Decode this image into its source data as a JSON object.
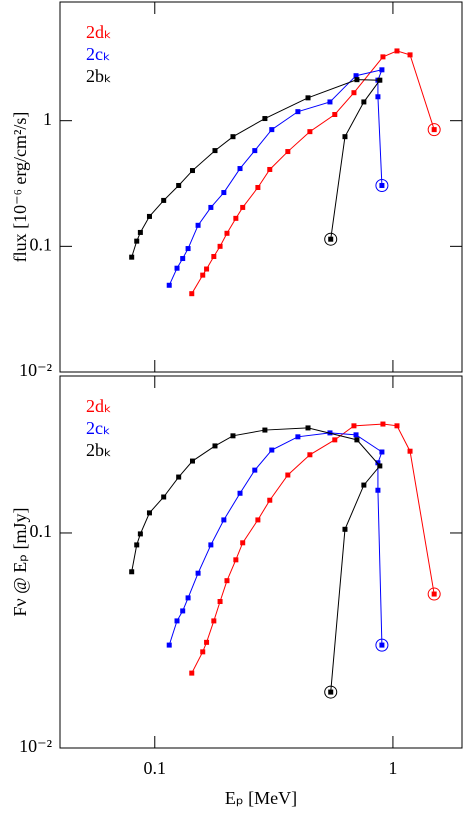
{
  "chart_data": [
    {
      "type": "line",
      "y_label": "flux [10⁻⁶ erg/cm²/s]",
      "xscale": "log",
      "yscale": "log",
      "xlim": [
        0.04,
        1.95
      ],
      "ylim": [
        0.01,
        8.8
      ],
      "xticks": [
        0.1,
        1
      ],
      "show_xtick_labels": false,
      "yticks": [
        {
          "value": 0.01,
          "label": "10⁻²"
        },
        0.1,
        1
      ],
      "legend": "upper left",
      "circle_last": true,
      "series": [
        {
          "name": "2dₖ",
          "color": "#ff0000",
          "x": [
            0.143,
            0.159,
            0.165,
            0.177,
            0.188,
            0.201,
            0.219,
            0.234,
            0.271,
            0.304,
            0.362,
            0.448,
            0.57,
            0.686,
            0.908,
            1.04,
            1.18,
            1.49
          ],
          "values": [
            0.042,
            0.059,
            0.066,
            0.083,
            0.1,
            0.127,
            0.167,
            0.204,
            0.294,
            0.409,
            0.568,
            0.818,
            1.12,
            1.67,
            3.22,
            3.59,
            3.34,
            0.849
          ]
        },
        {
          "name": "2cₖ",
          "color": "#0000ff",
          "x": [
            0.115,
            0.124,
            0.131,
            0.138,
            0.152,
            0.172,
            0.195,
            0.228,
            0.263,
            0.31,
            0.399,
            0.544,
            0.7,
            0.899,
            0.865,
            0.865,
            0.899
          ],
          "values": [
            0.049,
            0.067,
            0.08,
            0.096,
            0.147,
            0.204,
            0.268,
            0.416,
            0.578,
            0.849,
            1.18,
            1.41,
            2.28,
            2.54,
            2.1,
            1.55,
            0.305
          ]
        },
        {
          "name": "2bₖ",
          "color": "#000000",
          "x": [
            0.08,
            0.084,
            0.087,
            0.095,
            0.109,
            0.126,
            0.144,
            0.179,
            0.213,
            0.29,
            0.44,
            0.706,
            0.881,
            0.755,
            0.629,
            0.548
          ],
          "values": [
            0.082,
            0.11,
            0.129,
            0.173,
            0.232,
            0.305,
            0.401,
            0.578,
            0.746,
            1.04,
            1.52,
            2.12,
            2.1,
            1.41,
            0.746,
            0.114
          ]
        }
      ]
    },
    {
      "type": "line",
      "x_label": "Eₚ [MeV]",
      "y_label": "Fν @ Eₚ [mJy]",
      "xscale": "log",
      "yscale": "log",
      "xlim": [
        0.04,
        1.95
      ],
      "ylim": [
        0.01,
        0.537
      ],
      "xticks": [
        0.1,
        1
      ],
      "show_xtick_labels": true,
      "yticks": [
        {
          "value": 0.01,
          "label": "10⁻²"
        },
        0.1
      ],
      "legend": "upper left",
      "circle_last": true,
      "series": [
        {
          "name": "2dₖ",
          "color": "#ff0000",
          "x": [
            0.143,
            0.159,
            0.165,
            0.177,
            0.188,
            0.201,
            0.219,
            0.234,
            0.271,
            0.304,
            0.362,
            0.448,
            0.57,
            0.686,
            0.908,
            1.04,
            1.18,
            1.49
          ],
          "values": [
            0.0223,
            0.028,
            0.031,
            0.039,
            0.048,
            0.06,
            0.075,
            0.09,
            0.115,
            0.142,
            0.186,
            0.231,
            0.271,
            0.315,
            0.321,
            0.315,
            0.24,
            0.052
          ]
        },
        {
          "name": "2cₖ",
          "color": "#0000ff",
          "x": [
            0.115,
            0.124,
            0.131,
            0.138,
            0.152,
            0.172,
            0.195,
            0.228,
            0.263,
            0.31,
            0.399,
            0.544,
            0.7,
            0.899,
            0.865,
            0.865,
            0.899
          ],
          "values": [
            0.0301,
            0.039,
            0.0434,
            0.0499,
            0.065,
            0.088,
            0.115,
            0.153,
            0.196,
            0.243,
            0.28,
            0.292,
            0.286,
            0.238,
            0.212,
            0.158,
            0.0301
          ]
        },
        {
          "name": "2bₖ",
          "color": "#000000",
          "x": [
            0.08,
            0.084,
            0.087,
            0.095,
            0.109,
            0.126,
            0.144,
            0.179,
            0.213,
            0.29,
            0.44,
            0.706,
            0.881,
            0.755,
            0.629,
            0.548
          ],
          "values": [
            0.066,
            0.088,
            0.099,
            0.124,
            0.147,
            0.182,
            0.216,
            0.254,
            0.283,
            0.301,
            0.308,
            0.271,
            0.205,
            0.167,
            0.104,
            0.0182
          ]
        }
      ]
    }
  ]
}
